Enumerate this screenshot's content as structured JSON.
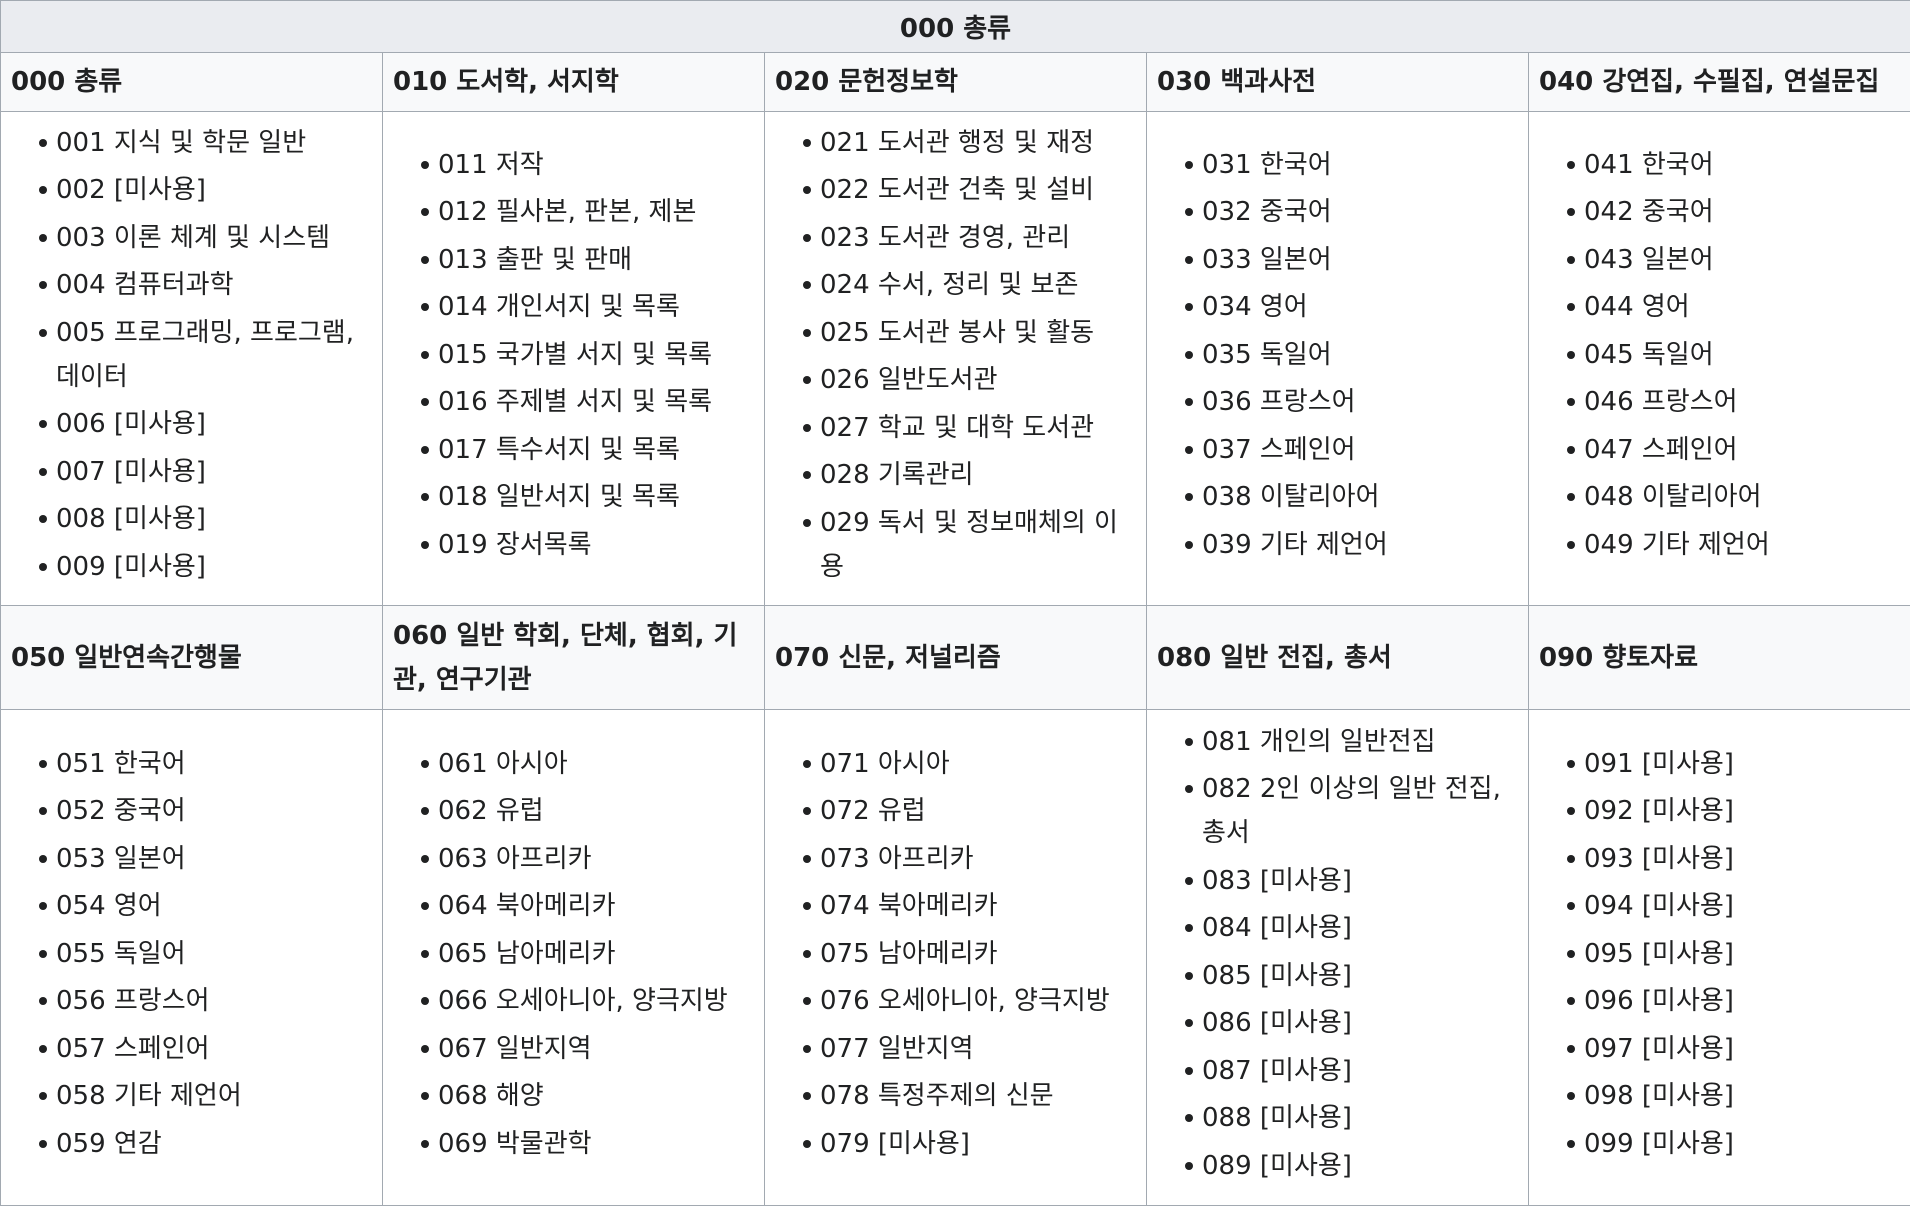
{
  "title": "000 총류",
  "sections": [
    {
      "heading": "000 총류",
      "items": [
        "001 지식 및 학문 일반",
        "002 [미사용]",
        "003 이론 체계 및 시스템",
        "004 컴퓨터과학",
        "005 프로그래밍, 프로그램, 데이터",
        "006 [미사용]",
        "007 [미사용]",
        "008 [미사용]",
        "009 [미사용]"
      ]
    },
    {
      "heading": "010 도서학, 서지학",
      "items": [
        "011 저작",
        "012 필사본, 판본, 제본",
        "013 출판 및 판매",
        "014 개인서지 및 목록",
        "015 국가별 서지 및 목록",
        "016 주제별 서지 및 목록",
        "017 특수서지 및 목록",
        "018 일반서지 및 목록",
        "019 장서목록"
      ]
    },
    {
      "heading": "020 문헌정보학",
      "items": [
        "021 도서관 행정 및 재정",
        "022 도서관 건축 및 설비",
        "023 도서관 경영, 관리",
        "024 수서, 정리 및 보존",
        "025 도서관 봉사 및 활동",
        "026 일반도서관",
        "027 학교 및 대학 도서관",
        "028 기록관리",
        "029 독서 및 정보매체의 이용"
      ]
    },
    {
      "heading": "030 백과사전",
      "items": [
        "031 한국어",
        "032 중국어",
        "033 일본어",
        "034 영어",
        "035 독일어",
        "036 프랑스어",
        "037 스페인어",
        "038 이탈리아어",
        "039 기타 제언어"
      ]
    },
    {
      "heading": "040 강연집, 수필집, 연설문집",
      "items": [
        "041 한국어",
        "042 중국어",
        "043 일본어",
        "044 영어",
        "045 독일어",
        "046 프랑스어",
        "047 스페인어",
        "048 이탈리아어",
        "049 기타 제언어"
      ]
    },
    {
      "heading": "050 일반연속간행물",
      "items": [
        "051 한국어",
        "052 중국어",
        "053 일본어",
        "054 영어",
        "055 독일어",
        "056 프랑스어",
        "057 스페인어",
        "058 기타 제언어",
        "059 연감"
      ]
    },
    {
      "heading": "060 일반 학회, 단체, 협회, 기관, 연구기관",
      "items": [
        "061 아시아",
        "062 유럽",
        "063 아프리카",
        "064 북아메리카",
        "065 남아메리카",
        "066 오세아니아, 양극지방",
        "067 일반지역",
        "068 해양",
        "069 박물관학"
      ]
    },
    {
      "heading": "070 신문, 저널리즘",
      "items": [
        "071 아시아",
        "072 유럽",
        "073 아프리카",
        "074 북아메리카",
        "075 남아메리카",
        "076 오세아니아, 양극지방",
        "077 일반지역",
        "078 특정주제의 신문",
        "079 [미사용]"
      ]
    },
    {
      "heading": "080 일반 전집, 총서",
      "items": [
        "081 개인의 일반전집",
        "082 2인 이상의 일반 전집, 총서",
        "083 [미사용]",
        "084 [미사용]",
        "085 [미사용]",
        "086 [미사용]",
        "087 [미사용]",
        "088 [미사용]",
        "089 [미사용]"
      ]
    },
    {
      "heading": "090 향토자료",
      "items": [
        "091 [미사용]",
        "092 [미사용]",
        "093 [미사용]",
        "094 [미사용]",
        "095 [미사용]",
        "096 [미사용]",
        "097 [미사용]",
        "098 [미사용]",
        "099 [미사용]"
      ]
    }
  ]
}
